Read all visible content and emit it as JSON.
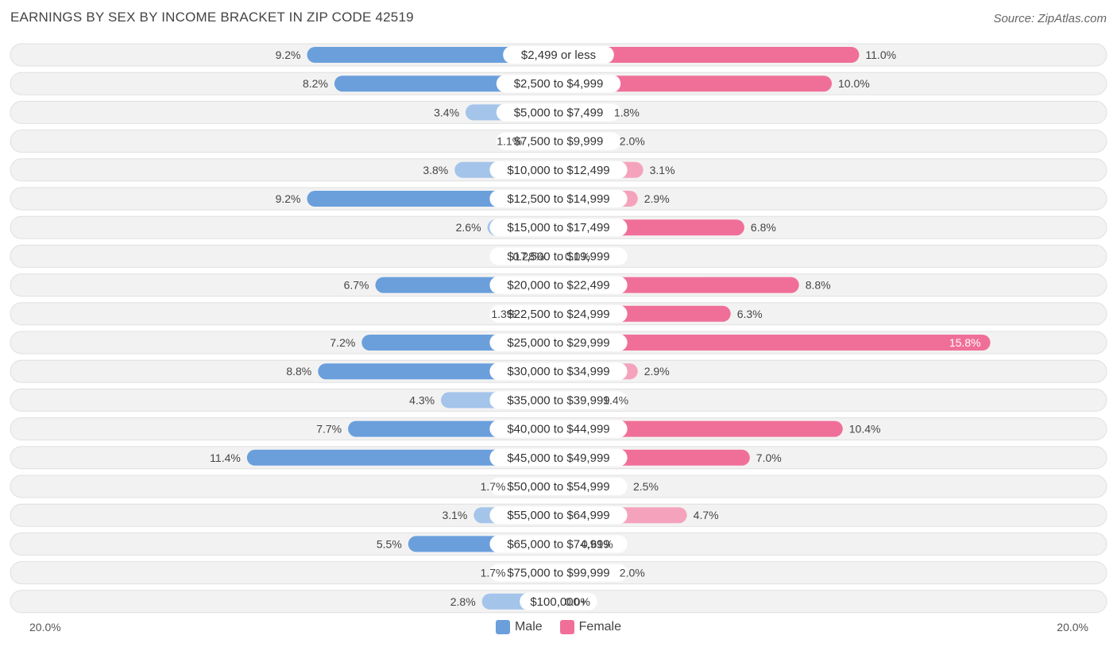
{
  "title": "EARNINGS BY SEX BY INCOME BRACKET IN ZIP CODE 42519",
  "source": "Source: ZipAtlas.com",
  "colors": {
    "male_strong": "#6a9fdc",
    "male_light": "#a4c4ea",
    "female_strong": "#f06f98",
    "female_light": "#f5a3bd",
    "row_bg": "#f2f2f2",
    "row_border": "#e0e0e0"
  },
  "legend": {
    "male": "Male",
    "female": "Female"
  },
  "axis": {
    "left": "20.0%",
    "right": "20.0%"
  },
  "chart_data": {
    "type": "bar",
    "orientation": "horizontal-diverging",
    "title": "EARNINGS BY SEX BY INCOME BRACKET IN ZIP CODE 42519",
    "xlim": [
      -20,
      20
    ],
    "categories": [
      "$2,499 or less",
      "$2,500 to $4,999",
      "$5,000 to $7,499",
      "$7,500 to $9,999",
      "$10,000 to $12,499",
      "$12,500 to $14,999",
      "$15,000 to $17,499",
      "$17,500 to $19,999",
      "$20,000 to $22,499",
      "$22,500 to $24,999",
      "$25,000 to $29,999",
      "$30,000 to $34,999",
      "$35,000 to $39,999",
      "$40,000 to $44,999",
      "$45,000 to $49,999",
      "$50,000 to $54,999",
      "$55,000 to $64,999",
      "$65,000 to $74,999",
      "$75,000 to $99,999",
      "$100,000+"
    ],
    "series": [
      {
        "name": "Male",
        "values": [
          9.2,
          8.2,
          3.4,
          1.1,
          3.8,
          9.2,
          2.6,
          0.28,
          6.7,
          1.3,
          7.2,
          8.8,
          4.3,
          7.7,
          11.4,
          1.7,
          3.1,
          5.5,
          1.7,
          2.8
        ],
        "labels": [
          "9.2%",
          "8.2%",
          "3.4%",
          "1.1%",
          "3.8%",
          "9.2%",
          "2.6%",
          "0.28%",
          "6.7%",
          "1.3%",
          "7.2%",
          "8.8%",
          "4.3%",
          "7.7%",
          "11.4%",
          "1.7%",
          "3.1%",
          "5.5%",
          "1.7%",
          "2.8%"
        ]
      },
      {
        "name": "Female",
        "values": [
          11.0,
          10.0,
          1.8,
          2.0,
          3.1,
          2.9,
          6.8,
          0.0,
          8.8,
          6.3,
          15.8,
          2.9,
          1.4,
          10.4,
          7.0,
          2.5,
          4.7,
          0.61,
          2.0,
          0.0
        ],
        "labels": [
          "11.0%",
          "10.0%",
          "1.8%",
          "2.0%",
          "3.1%",
          "2.9%",
          "6.8%",
          "0.0%",
          "8.8%",
          "6.3%",
          "15.8%",
          "2.9%",
          "1.4%",
          "10.4%",
          "7.0%",
          "2.5%",
          "4.7%",
          "0.61%",
          "2.0%",
          "0.0%"
        ]
      }
    ]
  }
}
